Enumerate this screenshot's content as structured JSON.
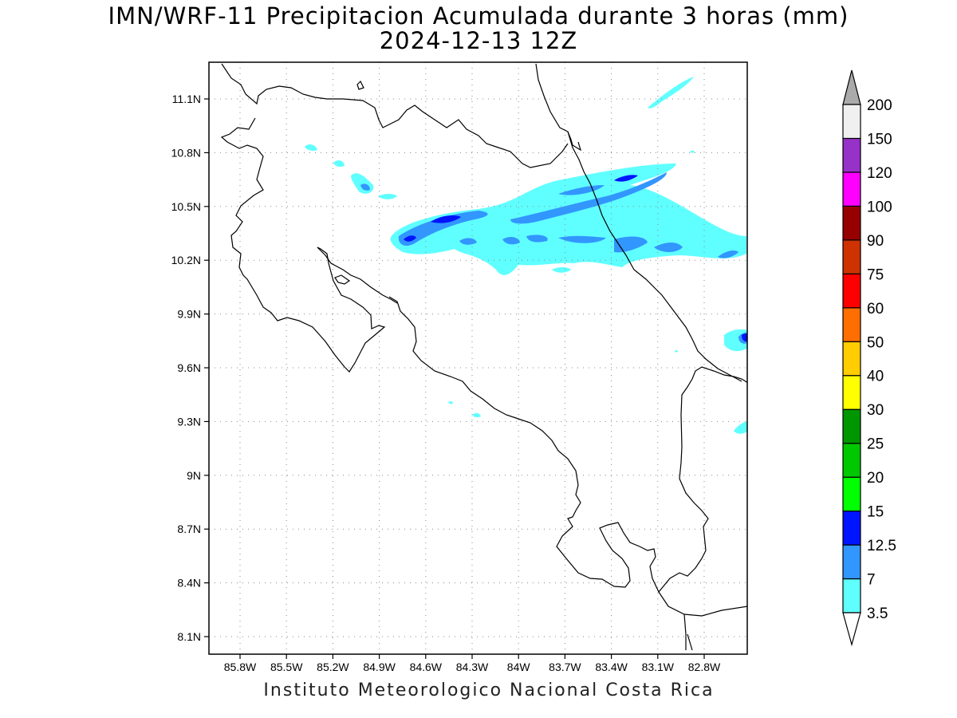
{
  "title": {
    "line1": "IMN/WRF-11 Precipitacion Acumulada durante 3 horas (mm)",
    "line2": "2024-12-13 12Z"
  },
  "footer": "Instituto Meteorologico Nacional Costa Rica",
  "map": {
    "lat_ticks": [
      "11.1N",
      "10.8N",
      "10.5N",
      "10.2N",
      "9.9N",
      "9.6N",
      "9.3N",
      "9N",
      "8.7N",
      "8.4N",
      "8.1N"
    ],
    "lon_ticks": [
      "85.8W",
      "85.5W",
      "85.2W",
      "84.9W",
      "84.6W",
      "84.3W",
      "84W",
      "83.7W",
      "83.4W",
      "83.1W",
      "82.8W"
    ],
    "grid": "dotted",
    "coastline_color": "#000000"
  },
  "colorbar": {
    "levels": [
      "3.5",
      "7",
      "12.5",
      "15",
      "20",
      "25",
      "30",
      "40",
      "50",
      "60",
      "75",
      "90",
      "100",
      "120",
      "150",
      "200"
    ],
    "colors": [
      "#60ffff",
      "#3296ff",
      "#0014ff",
      "#00ff00",
      "#00c800",
      "#009600",
      "#ffff00",
      "#ffcd00",
      "#ff6e00",
      "#ff0000",
      "#cd3200",
      "#960000",
      "#ff00ff",
      "#9632c8",
      "#f0f0f0"
    ],
    "low_cap_color": "#ffffff",
    "high_cap_color": "#aaaaaa"
  },
  "precip_colors": {
    "light": "#60ffff",
    "moderate": "#3296ff",
    "heavy": "#0014ff"
  }
}
